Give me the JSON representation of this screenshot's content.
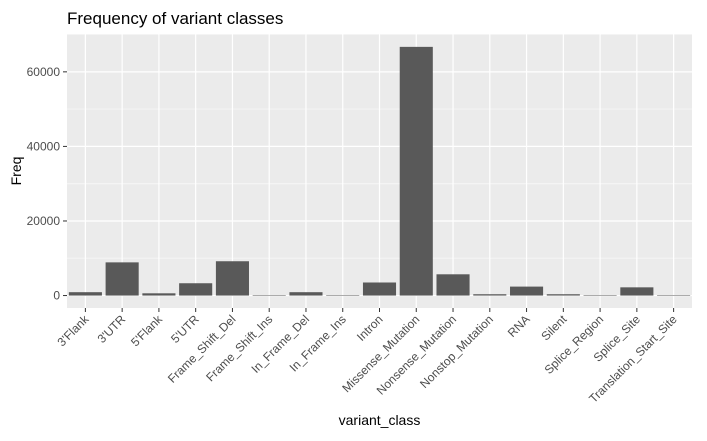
{
  "chart_data": {
    "type": "bar",
    "title": "Frequency of variant classes",
    "xlabel": "variant_class",
    "ylabel": "Freq",
    "categories": [
      "3'Flank",
      "3'UTR",
      "5'Flank",
      "5'UTR",
      "Frame_Shift_Del",
      "Frame_Shift_Ins",
      "In_Frame_Del",
      "In_Frame_Ins",
      "Intron",
      "Missense_Mutation",
      "Nonsense_Mutation",
      "Nonstop_Mutation",
      "RNA",
      "Silent",
      "Splice_Region",
      "Splice_Site",
      "Translation_Start_Site"
    ],
    "values": [
      900,
      8900,
      600,
      3300,
      9200,
      50,
      900,
      50,
      3500,
      66700,
      5700,
      350,
      2400,
      350,
      50,
      2200,
      20
    ],
    "ylim": [
      -3341,
      70151
    ],
    "yticks": [
      0,
      20000,
      40000,
      60000
    ],
    "grid": true,
    "legend": "none",
    "colors": {
      "bar": "#595959",
      "panel": "#ebebeb",
      "grid_major": "#ffffff",
      "grid_minor": "#f5f5f5",
      "tick_text": "#4d4d4d"
    }
  }
}
